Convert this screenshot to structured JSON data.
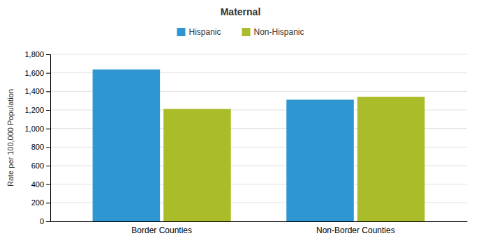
{
  "chart_data": {
    "type": "bar",
    "title": "Maternal",
    "categories": [
      "Border Counties",
      "Non-Border Counties"
    ],
    "series": [
      {
        "name": "Hispanic",
        "color": "#2E96D0",
        "values": [
          1637,
          1311
        ]
      },
      {
        "name": "Non-Hispanic",
        "color": "#AABC2A",
        "values": [
          1211,
          1343
        ]
      }
    ],
    "ylabel": "Rate per 100,000 Population",
    "ylim": [
      0,
      1800
    ],
    "yticks": [
      0,
      200,
      400,
      600,
      800,
      {
        "value": 1000,
        "label": "1,000"
      },
      {
        "value": 1200,
        "label": "1,200"
      },
      {
        "value": 1400,
        "label": "1,400"
      },
      {
        "value": 1600,
        "label": "1,600"
      },
      {
        "value": 1800,
        "label": "1,800"
      }
    ],
    "grid": true,
    "legend": "top"
  }
}
